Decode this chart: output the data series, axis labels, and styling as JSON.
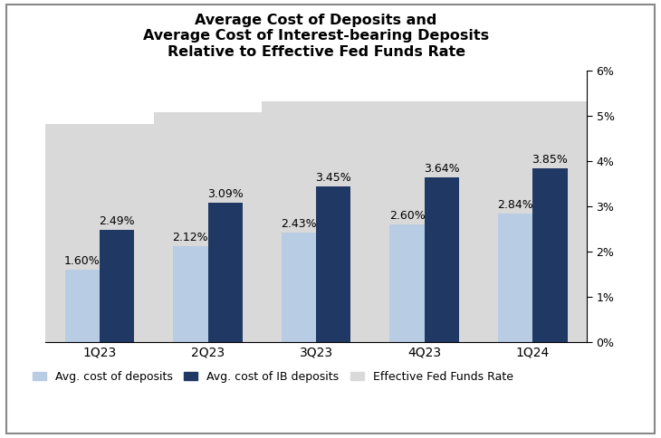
{
  "title": "Average Cost of Deposits and\nAverage Cost of Interest-bearing Deposits\nRelative to Effective Fed Funds Rate",
  "categories": [
    "1Q23",
    "2Q23",
    "3Q23",
    "4Q23",
    "1Q24"
  ],
  "avg_cost_deposits": [
    1.6,
    2.12,
    2.43,
    2.6,
    2.84
  ],
  "avg_cost_ib_deposits": [
    2.49,
    3.09,
    3.45,
    3.64,
    3.85
  ],
  "effr": [
    4.83,
    5.08,
    5.33,
    5.33,
    5.33
  ],
  "bar_color_deposits": "#b8cce4",
  "bar_color_ib": "#1f3864",
  "bar_color_effr": "#d9d9d9",
  "ylim": [
    0,
    6
  ],
  "yticks": [
    0,
    1,
    2,
    3,
    4,
    5,
    6
  ],
  "ytick_labels": [
    "0%",
    "1%",
    "2%",
    "3%",
    "4%",
    "5%",
    "6%"
  ],
  "bar_width": 0.32,
  "legend_labels": [
    "Avg. cost of deposits",
    "Avg. cost of IB deposits",
    "Effective Fed Funds Rate"
  ],
  "label_fontsize": 9,
  "title_fontsize": 11.5,
  "figure_border_color": "#aaaaaa"
}
